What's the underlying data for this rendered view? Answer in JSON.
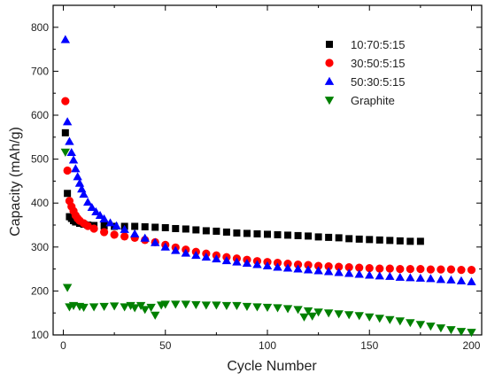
{
  "chart_data": {
    "type": "scatter",
    "xlabel": "Cycle Number",
    "ylabel": "Capacity (mAh/g)",
    "xlim": [
      -5,
      205
    ],
    "ylim": [
      100,
      850
    ],
    "x_ticks": [
      0,
      50,
      100,
      150,
      200
    ],
    "y_ticks": [
      100,
      200,
      300,
      400,
      500,
      600,
      700,
      800
    ],
    "x_tick_labels": [
      "0",
      "50",
      "100",
      "150",
      "200"
    ],
    "y_tick_labels": [
      "100",
      "200",
      "300",
      "400",
      "500",
      "600",
      "700",
      "800"
    ],
    "grid": false,
    "legend_position": "top-right",
    "series": [
      {
        "name": "10:70:5:15",
        "marker": "square",
        "color": "#000000",
        "x": [
          1,
          2,
          3,
          4,
          5,
          6,
          8,
          10,
          12,
          15,
          20,
          25,
          30,
          35,
          40,
          45,
          50,
          55,
          60,
          65,
          70,
          75,
          80,
          85,
          90,
          95,
          100,
          105,
          110,
          115,
          120,
          125,
          130,
          135,
          140,
          145,
          150,
          155,
          160,
          165,
          170,
          175
        ],
        "y": [
          560,
          422,
          369,
          365,
          360,
          357,
          354,
          352,
          350,
          349,
          348,
          347,
          347,
          347,
          346,
          345,
          344,
          342,
          341,
          339,
          337,
          336,
          334,
          332,
          331,
          330,
          329,
          328,
          327,
          326,
          325,
          323,
          322,
          321,
          319,
          318,
          317,
          316,
          315,
          314,
          313,
          313
        ]
      },
      {
        "name": "30:50:5:15",
        "marker": "circle",
        "color": "#ff0000",
        "x": [
          1,
          2,
          3,
          4,
          5,
          6,
          7,
          8,
          10,
          12,
          15,
          20,
          25,
          30,
          35,
          40,
          45,
          50,
          55,
          60,
          65,
          70,
          75,
          80,
          85,
          90,
          95,
          100,
          105,
          110,
          115,
          120,
          125,
          130,
          135,
          140,
          145,
          150,
          155,
          160,
          165,
          170,
          175,
          180,
          185,
          190,
          195,
          200
        ],
        "y": [
          632,
          474,
          405,
          392,
          382,
          372,
          365,
          360,
          354,
          348,
          342,
          334,
          328,
          324,
          321,
          316,
          311,
          305,
          299,
          294,
          289,
          285,
          281,
          277,
          274,
          271,
          268,
          266,
          264,
          262,
          260,
          259,
          257,
          256,
          255,
          254,
          253,
          252,
          251,
          251,
          250,
          250,
          250,
          249,
          249,
          249,
          248,
          248
        ]
      },
      {
        "name": "50:30:5:15",
        "marker": "triangle-up",
        "color": "#0000ff",
        "x": [
          1,
          2,
          3,
          4,
          5,
          6,
          7,
          8,
          9,
          10,
          12,
          14,
          16,
          18,
          20,
          23,
          26,
          30,
          35,
          40,
          45,
          50,
          55,
          60,
          65,
          70,
          75,
          80,
          85,
          90,
          95,
          100,
          105,
          110,
          115,
          120,
          125,
          130,
          135,
          140,
          145,
          150,
          155,
          160,
          165,
          170,
          175,
          180,
          185,
          190,
          195,
          200
        ],
        "y": [
          772,
          585,
          540,
          515,
          498,
          478,
          460,
          445,
          432,
          420,
          402,
          390,
          380,
          372,
          364,
          355,
          348,
          340,
          330,
          320,
          310,
          300,
          292,
          286,
          281,
          277,
          273,
          269,
          266,
          263,
          260,
          257,
          254,
          252,
          250,
          248,
          246,
          244,
          242,
          240,
          238,
          236,
          234,
          233,
          231,
          230,
          229,
          228,
          226,
          225,
          223,
          221
        ]
      },
      {
        "name": "Graphite",
        "marker": "triangle-down",
        "color": "#008000",
        "x": [
          1,
          2,
          3,
          5,
          8,
          10,
          15,
          20,
          25,
          30,
          33,
          35,
          38,
          40,
          43,
          45,
          48,
          50,
          55,
          60,
          65,
          70,
          75,
          80,
          85,
          90,
          95,
          100,
          105,
          110,
          115,
          118,
          120,
          122,
          125,
          130,
          135,
          140,
          145,
          150,
          155,
          160,
          165,
          170,
          175,
          180,
          185,
          190,
          195,
          200
        ],
        "y": [
          516,
          208,
          164,
          167,
          165,
          163,
          164,
          165,
          166,
          164,
          167,
          162,
          167,
          158,
          163,
          145,
          168,
          170,
          170,
          170,
          169,
          168,
          168,
          167,
          167,
          165,
          164,
          163,
          162,
          160,
          158,
          141,
          155,
          143,
          152,
          150,
          148,
          146,
          144,
          141,
          138,
          135,
          132,
          128,
          124,
          120,
          116,
          112,
          108,
          106
        ]
      }
    ]
  }
}
